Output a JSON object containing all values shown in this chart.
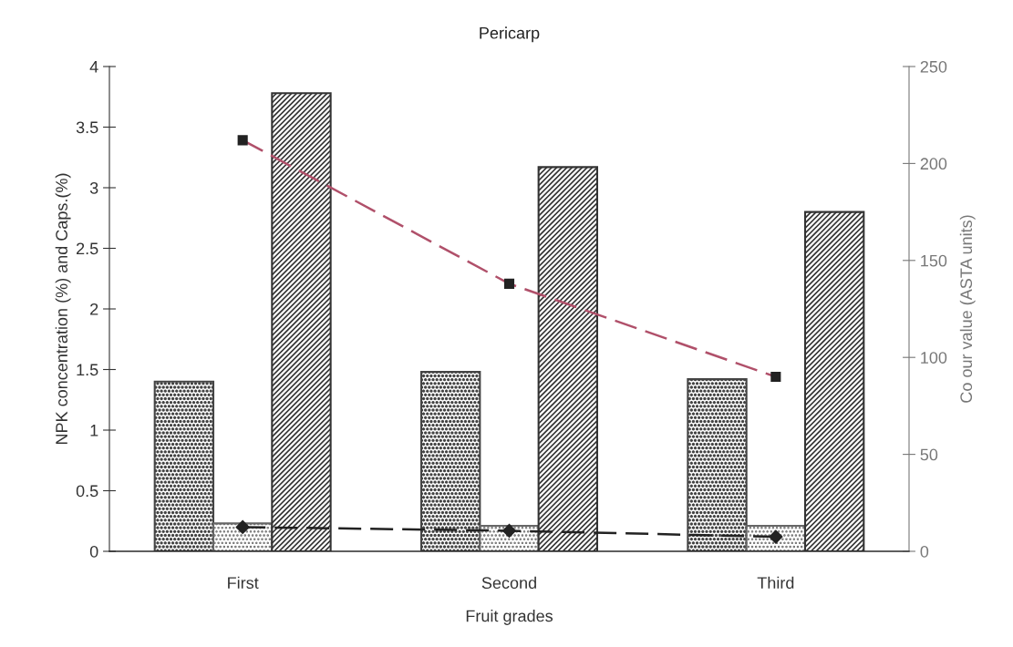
{
  "chart_data": {
    "type": "bar",
    "title": "Pericarp",
    "xlabel": "Fruit grades",
    "ylabel": "NPK concentration (%) and Caps.(%)",
    "y2label": "Co our value (ASTA units)",
    "categories": [
      "First",
      "Second",
      "Third"
    ],
    "series": [
      {
        "color": "#444444",
        "values": [
          1.4,
          1.48,
          1.42
        ]
      },
      {
        "color": "#666666",
        "values": [
          0.23,
          0.21,
          0.21
        ]
      },
      {
        "color": "#333333",
        "values": [
          3.78,
          3.17,
          2.8
        ]
      },
      {
        "type": "line",
        "axis": "y2",
        "color": "#b0506a",
        "marker": "square",
        "line_style": "dashed",
        "values": [
          212,
          138,
          90
        ]
      },
      {
        "type": "line",
        "color": "#222222",
        "marker": "diamond",
        "line_style": "dashed",
        "values": [
          0.2,
          0.17,
          0.12
        ]
      }
    ],
    "ylim": [
      0,
      4
    ],
    "yticks": [
      0,
      0.5,
      1,
      1.5,
      2,
      2.5,
      3,
      3.5,
      4
    ],
    "y2lim": [
      0,
      250
    ],
    "y2ticks": [
      0,
      50,
      100,
      150,
      200,
      250
    ],
    "grid": false,
    "legend": false
  }
}
